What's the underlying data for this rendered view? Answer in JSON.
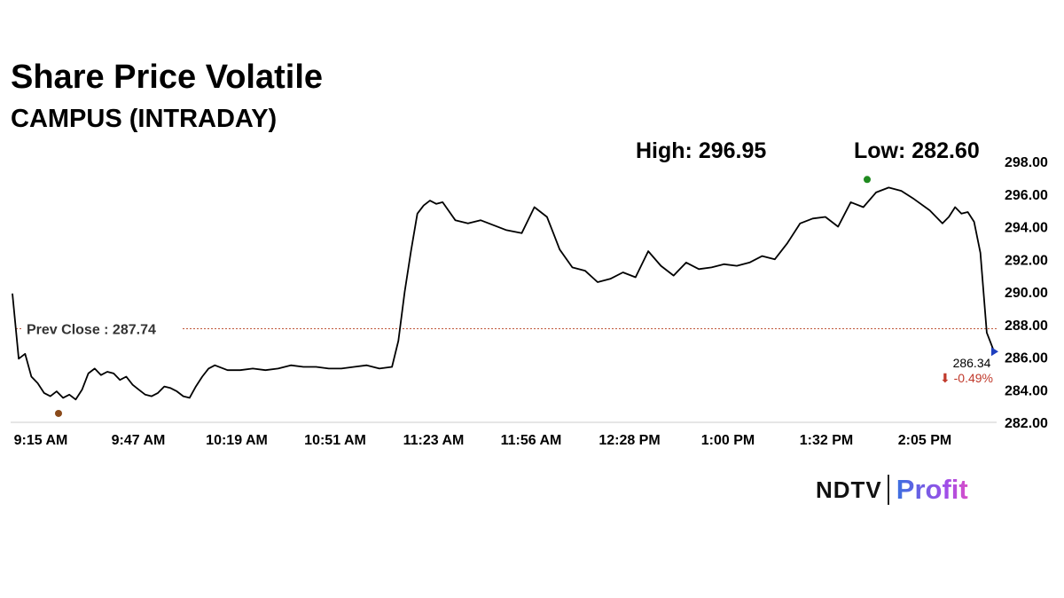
{
  "header": {
    "title": "Share Price Volatile",
    "subtitle": "CAMPUS (INTRADAY)"
  },
  "stats": {
    "high_label": "High: 296.95",
    "low_label": "Low: 282.60"
  },
  "brand": {
    "ndtv": "NDTV",
    "profit": "Profit"
  },
  "colors": {
    "line": "#000000",
    "prev_close_line": "#c0573a",
    "high_marker": "#1f8a1f",
    "low_marker": "#8a4a1a",
    "change_negative": "#c0392b",
    "last_marker": "#1f3fbf",
    "grid": "#cccccc"
  },
  "chart_data": {
    "type": "line",
    "title": "Share Price Volatile",
    "subtitle": "CAMPUS (INTRADAY)",
    "xlabel": "",
    "ylabel": "",
    "x_ticks": [
      "9:15 AM",
      "9:47 AM",
      "10:19 AM",
      "10:51 AM",
      "11:23 AM",
      "11:56 AM",
      "12:28 PM",
      "1:00 PM",
      "1:32 PM",
      "2:05 PM"
    ],
    "y_ticks": [
      "298.00",
      "296.00",
      "294.00",
      "292.00",
      "290.00",
      "288.00",
      "286.00",
      "284.00",
      "282.00"
    ],
    "ylim": [
      282,
      298
    ],
    "grid": false,
    "prev_close": 287.74,
    "prev_close_label": "Prev Close : 287.74",
    "high": 296.95,
    "low": 282.6,
    "last": 286.34,
    "last_label": "286.34",
    "change_label": "⬇ -0.49%",
    "series": [
      {
        "x": [
          "9:15 AM",
          "9:17 AM",
          "9:19 AM",
          "9:21 AM",
          "9:23 AM",
          "9:25 AM",
          "9:27 AM",
          "9:29 AM",
          "9:31 AM",
          "9:33 AM",
          "9:35 AM",
          "9:37 AM",
          "9:39 AM",
          "9:41 AM",
          "9:43 AM",
          "9:45 AM",
          "9:47 AM",
          "9:49 AM",
          "9:51 AM",
          "9:53 AM",
          "9:55 AM",
          "9:57 AM",
          "9:59 AM",
          "10:01 AM",
          "10:03 AM",
          "10:05 AM",
          "10:07 AM",
          "10:09 AM",
          "10:11 AM",
          "10:13 AM",
          "10:15 AM",
          "10:17 AM",
          "10:19 AM",
          "10:23 AM",
          "10:27 AM",
          "10:31 AM",
          "10:35 AM",
          "10:39 AM",
          "10:43 AM",
          "10:47 AM",
          "10:51 AM",
          "10:55 AM",
          "10:59 AM",
          "11:03 AM",
          "11:07 AM",
          "11:11 AM",
          "11:15 AM",
          "11:17 AM",
          "11:19 AM",
          "11:21 AM",
          "11:23 AM",
          "11:25 AM",
          "11:27 AM",
          "11:29 AM",
          "11:31 AM",
          "11:35 AM",
          "11:39 AM",
          "11:43 AM",
          "11:47 AM",
          "11:51 AM",
          "11:56 AM",
          "12:00 PM",
          "12:04 PM",
          "12:06 PM",
          "12:08 PM",
          "12:12 PM",
          "12:16 PM",
          "12:20 PM",
          "12:24 PM",
          "12:28 PM",
          "12:32 PM",
          "12:36 PM",
          "12:40 PM",
          "12:44 PM",
          "12:48 PM",
          "12:52 PM",
          "12:56 PM",
          "1:00 PM",
          "1:04 PM",
          "1:08 PM",
          "1:12 PM",
          "1:16 PM",
          "1:20 PM",
          "1:24 PM",
          "1:28 PM",
          "1:32 PM",
          "1:36 PM",
          "1:40 PM",
          "1:44 PM",
          "1:48 PM",
          "1:52 PM",
          "1:56 PM",
          "2:00 PM",
          "2:05 PM",
          "2:09 PM",
          "2:11 PM",
          "2:13 PM",
          "2:15 PM",
          "2:17 PM",
          "2:19 PM",
          "2:21 PM",
          "2:23 PM",
          "2:25 PM"
        ],
        "values": [
          289.9,
          285.9,
          286.2,
          284.8,
          284.4,
          283.8,
          283.6,
          283.9,
          283.5,
          283.7,
          283.4,
          284.0,
          285.0,
          285.3,
          284.9,
          285.1,
          285.0,
          284.6,
          284.8,
          284.3,
          284.0,
          283.7,
          283.6,
          283.8,
          284.2,
          284.1,
          283.9,
          283.6,
          283.5,
          284.2,
          284.8,
          285.3,
          285.5,
          285.2,
          285.2,
          285.3,
          285.2,
          285.3,
          285.5,
          285.4,
          285.4,
          285.3,
          285.3,
          285.4,
          285.5,
          285.3,
          285.4,
          287.0,
          290.0,
          292.5,
          294.8,
          295.3,
          295.6,
          295.4,
          295.5,
          294.4,
          294.2,
          294.4,
          294.1,
          293.8,
          293.6,
          295.2,
          294.6,
          293.6,
          292.6,
          291.5,
          291.3,
          290.6,
          290.8,
          291.2,
          290.9,
          292.5,
          291.6,
          291.0,
          291.8,
          291.4,
          291.5,
          291.7,
          291.6,
          291.8,
          292.2,
          292.0,
          293.0,
          294.2,
          294.5,
          294.6,
          294.0,
          295.5,
          295.2,
          296.1,
          296.4,
          296.2,
          295.7,
          295.0,
          294.2,
          294.6,
          295.2,
          294.8,
          294.9,
          294.3,
          292.4,
          287.5,
          286.5
        ]
      }
    ]
  }
}
